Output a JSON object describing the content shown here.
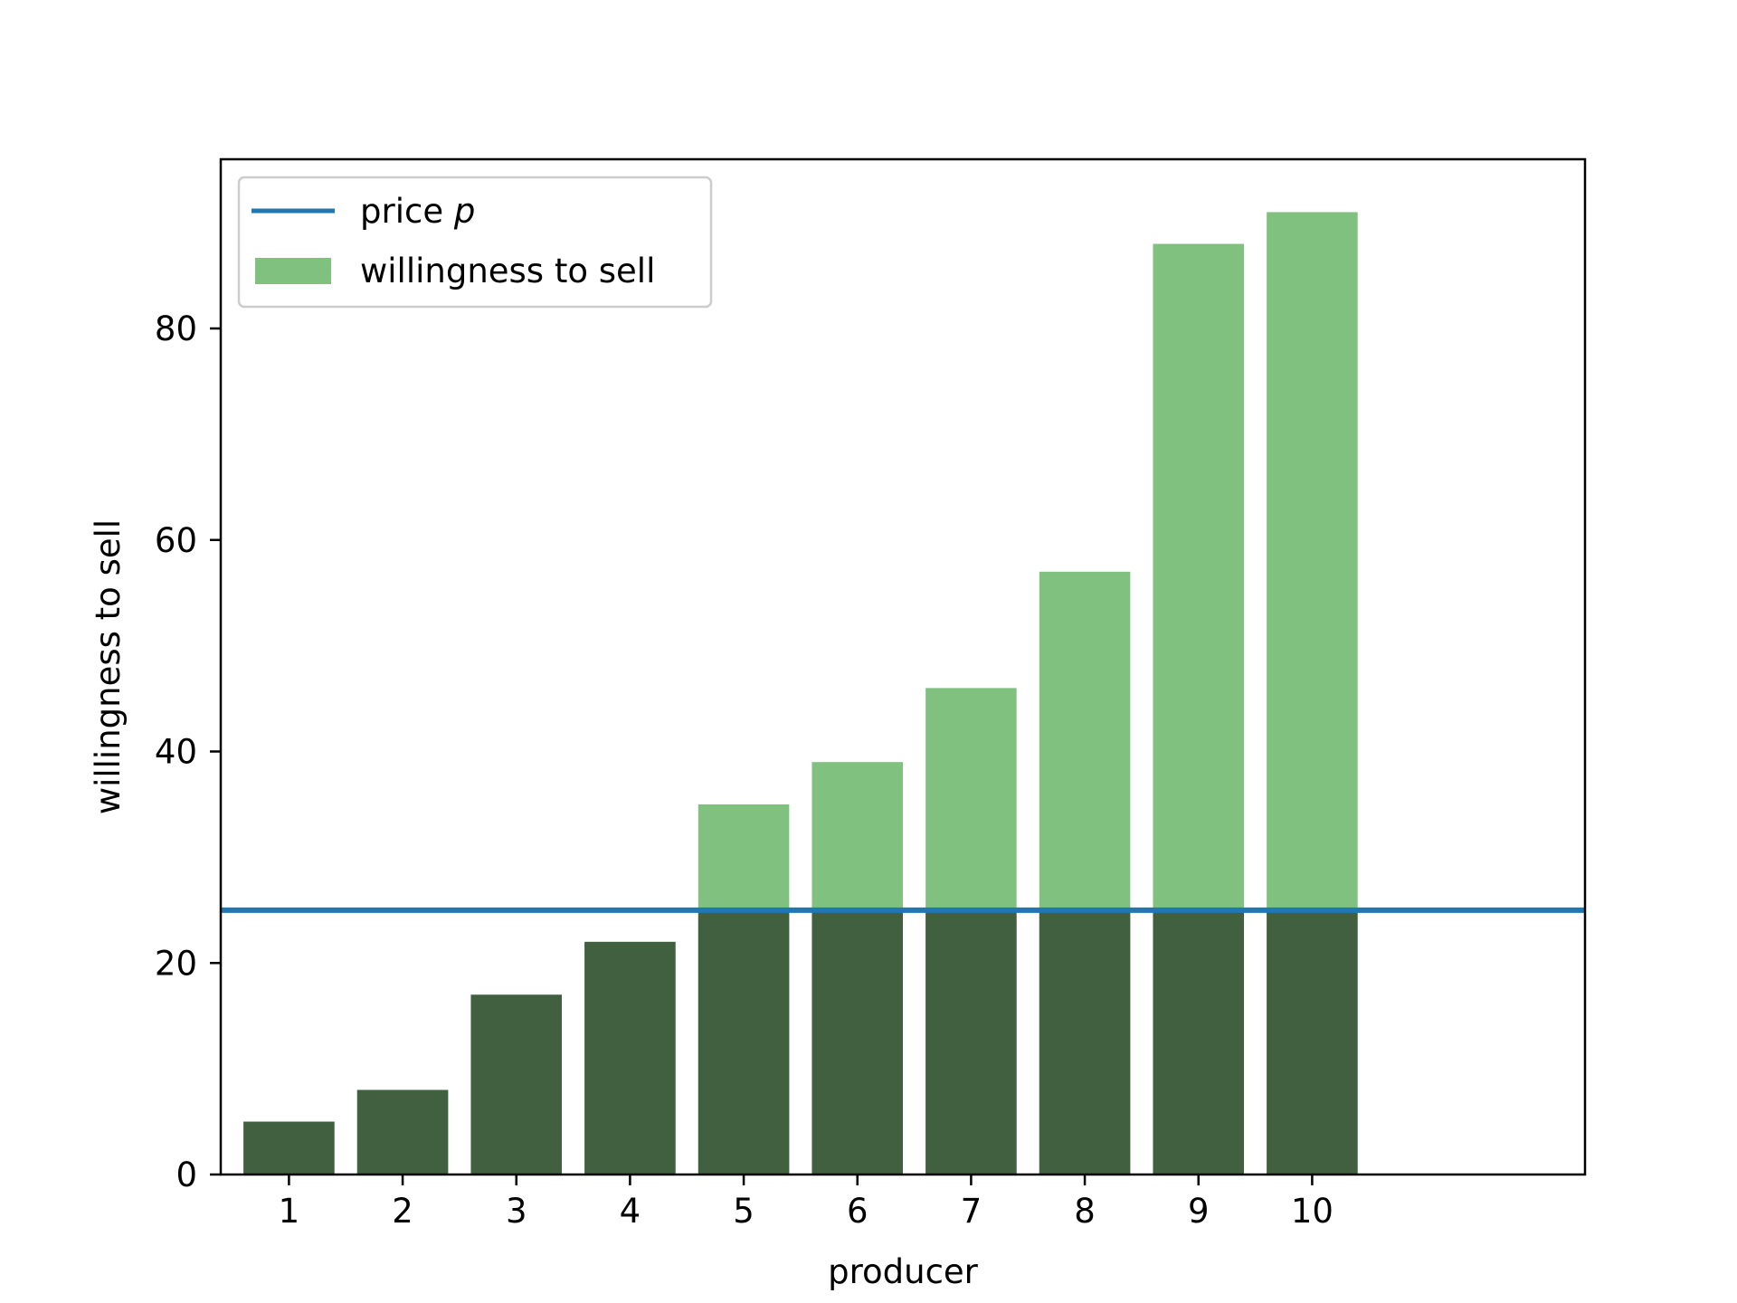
{
  "chart_data": {
    "type": "bar",
    "title": "",
    "xlabel": "producer",
    "ylabel": "willingness to sell",
    "categories": [
      "1",
      "2",
      "3",
      "4",
      "5",
      "6",
      "7",
      "8",
      "9",
      "10"
    ],
    "x": [
      1,
      2,
      3,
      4,
      5,
      6,
      7,
      8,
      9,
      10
    ],
    "series": [
      {
        "name": "willingness to sell",
        "values": [
          5,
          8,
          17,
          22,
          35,
          39,
          46,
          57,
          88,
          91
        ],
        "color": "#81c17f"
      }
    ],
    "price": {
      "name": "price p",
      "name_main": "price ",
      "name_italic": "p",
      "value": 25,
      "color": "#1f77b4"
    },
    "surplus_color": "#416040",
    "xlim": [
      0.4,
      12.4
    ],
    "ylim": [
      0,
      96
    ],
    "yticks": [
      0,
      20,
      40,
      60,
      80
    ],
    "grid": false,
    "legend_placement": "upper-left"
  }
}
